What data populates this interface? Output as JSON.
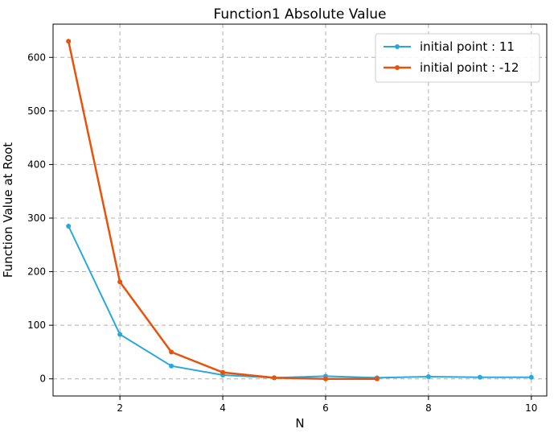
{
  "chart_data": {
    "type": "line",
    "title": "Function1 Absolute Value",
    "xlabel": "N",
    "ylabel": "Function Value at Root",
    "xlim": [
      0.7,
      10.3
    ],
    "ylim": [
      -32,
      662
    ],
    "x_ticks": [
      "2",
      "4",
      "6",
      "8",
      "10"
    ],
    "y_ticks": [
      "0",
      "100",
      "200",
      "300",
      "400",
      "500",
      "600"
    ],
    "grid": true,
    "legend_position": "top-right",
    "series": [
      {
        "name": "initial point : 11",
        "color": "#29a8e0",
        "x": [
          1,
          2,
          3,
          4,
          5,
          6,
          7,
          8,
          9,
          10
        ],
        "y": [
          285,
          83,
          24,
          7,
          2,
          5,
          2,
          4,
          3,
          3
        ]
      },
      {
        "name": "initial point : -12",
        "color": "#e8520a",
        "x": [
          1,
          2,
          3,
          4,
          5,
          6,
          7
        ],
        "y": [
          630,
          181,
          50,
          12,
          2,
          0,
          0
        ]
      }
    ]
  }
}
